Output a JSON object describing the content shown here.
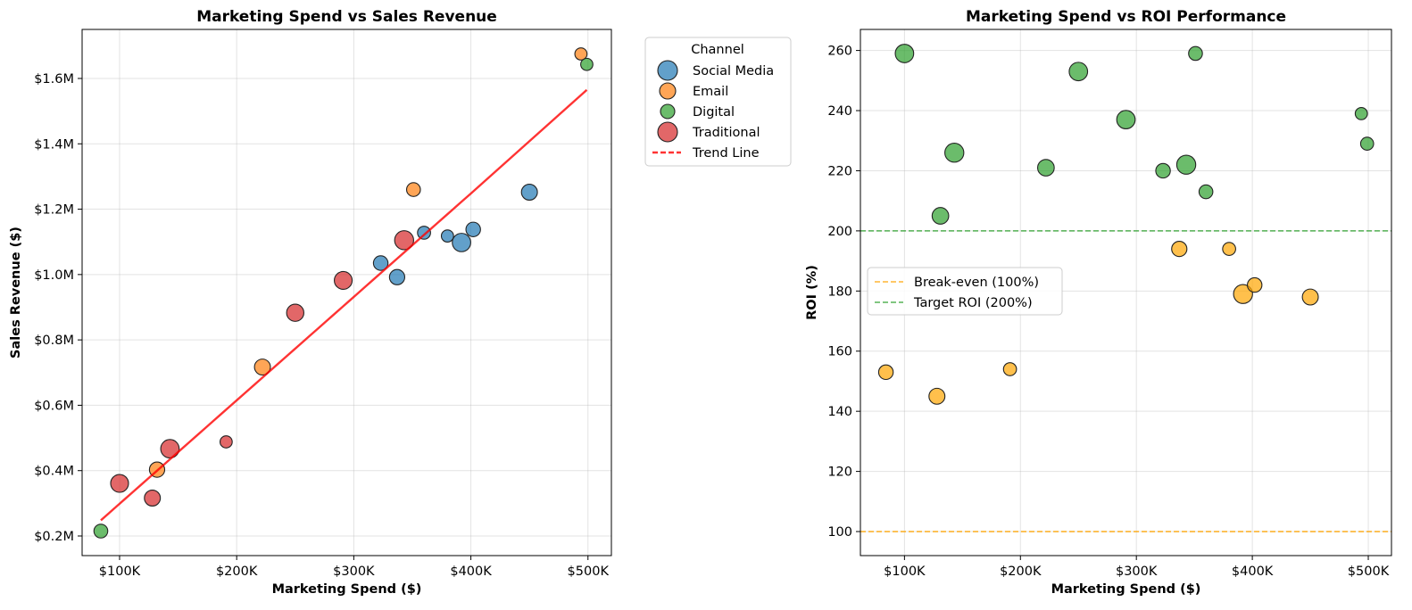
{
  "chart_data": [
    {
      "type": "scatter",
      "title": "Marketing Spend vs Sales Revenue",
      "xlabel": "Marketing Spend ($)",
      "ylabel": "Sales Revenue ($)",
      "xlim": [
        68000,
        520000
      ],
      "ylim": [
        140000,
        1750000
      ],
      "xticks": [
        100000,
        200000,
        300000,
        400000,
        500000
      ],
      "xtick_labels": [
        "$100K",
        "$200K",
        "$300K",
        "$400K",
        "$500K"
      ],
      "yticks": [
        200000,
        400000,
        600000,
        800000,
        1000000,
        1200000,
        1400000,
        1600000
      ],
      "ytick_labels": [
        "$0.2M",
        "$0.4M",
        "$0.6M",
        "$0.8M",
        "$1.0M",
        "$1.2M",
        "$1.4M",
        "$1.6M"
      ],
      "grid": true,
      "legend": {
        "title": "Channel",
        "placement": "outside-upper-right",
        "entries": [
          "Social Media",
          "Email",
          "Digital",
          "Traditional",
          "Trend Line"
        ]
      },
      "series": [
        {
          "name": "Social Media",
          "color": "#1f77b4",
          "points": [
            {
              "x": 323000,
              "y": 1035000,
              "size": 1.0
            },
            {
              "x": 337000,
              "y": 992000,
              "size": 1.1
            },
            {
              "x": 360000,
              "y": 1128000,
              "size": 0.8
            },
            {
              "x": 380000,
              "y": 1118000,
              "size": 0.7
            },
            {
              "x": 392000,
              "y": 1098000,
              "size": 1.6
            },
            {
              "x": 402000,
              "y": 1138000,
              "size": 1.0
            },
            {
              "x": 450000,
              "y": 1252000,
              "size": 1.2
            }
          ]
        },
        {
          "name": "Email",
          "color": "#ff7f0e",
          "points": [
            {
              "x": 132000,
              "y": 403000,
              "size": 1.1
            },
            {
              "x": 222000,
              "y": 717000,
              "size": 1.2
            },
            {
              "x": 351000,
              "y": 1260000,
              "size": 0.9
            },
            {
              "x": 494000,
              "y": 1675000,
              "size": 0.7
            }
          ]
        },
        {
          "name": "Digital",
          "color": "#2ca02c",
          "points": [
            {
              "x": 84000,
              "y": 215000,
              "size": 0.9
            },
            {
              "x": 499000,
              "y": 1643000,
              "size": 0.7
            }
          ]
        },
        {
          "name": "Traditional",
          "color": "#d62728",
          "points": [
            {
              "x": 100000,
              "y": 361000,
              "size": 1.5
            },
            {
              "x": 128000,
              "y": 316000,
              "size": 1.2
            },
            {
              "x": 143000,
              "y": 467000,
              "size": 1.6
            },
            {
              "x": 191000,
              "y": 488000,
              "size": 0.7
            },
            {
              "x": 250000,
              "y": 883000,
              "size": 1.4
            },
            {
              "x": 291000,
              "y": 982000,
              "size": 1.5
            },
            {
              "x": 343000,
              "y": 1105000,
              "size": 1.7
            }
          ]
        }
      ],
      "trend_line": {
        "name": "Trend Line",
        "color": "#ff0000",
        "x": [
          84000,
          400000,
          499000
        ],
        "y": [
          248000,
          1248000,
          1565000
        ]
      }
    },
    {
      "type": "scatter",
      "title": "Marketing Spend vs ROI Performance",
      "xlabel": "Marketing Spend ($)",
      "ylabel": "ROI (%)",
      "xlim": [
        62000,
        520000
      ],
      "ylim": [
        92,
        267
      ],
      "xticks": [
        100000,
        200000,
        300000,
        400000,
        500000
      ],
      "xtick_labels": [
        "$100K",
        "$200K",
        "$300K",
        "$400K",
        "$500K"
      ],
      "yticks": [
        100,
        120,
        140,
        160,
        180,
        200,
        220,
        240,
        260
      ],
      "ytick_labels": [
        "100",
        "120",
        "140",
        "160",
        "180",
        "200",
        "220",
        "240",
        "260"
      ],
      "grid": true,
      "legend": {
        "placement": "center-left",
        "entries": [
          "Break-even (100%)",
          "Target ROI (200%)"
        ]
      },
      "reference_lines": [
        {
          "label": "Break-even (100%)",
          "y": 100,
          "color": "#ffa500"
        },
        {
          "label": "Target ROI (200%)",
          "y": 200,
          "color": "#2ca02c"
        }
      ],
      "series": [
        {
          "name": "",
          "color": "#2ca02c",
          "points": [
            {
              "x": 100000,
              "y": 259,
              "size": 1.6
            },
            {
              "x": 131000,
              "y": 205,
              "size": 1.3
            },
            {
              "x": 143000,
              "y": 226,
              "size": 1.7
            },
            {
              "x": 222000,
              "y": 221,
              "size": 1.3
            },
            {
              "x": 250000,
              "y": 253,
              "size": 1.6
            },
            {
              "x": 291000,
              "y": 237,
              "size": 1.6
            },
            {
              "x": 323000,
              "y": 220,
              "size": 1.0
            },
            {
              "x": 343000,
              "y": 222,
              "size": 1.7
            },
            {
              "x": 351000,
              "y": 259,
              "size": 0.9
            },
            {
              "x": 360000,
              "y": 213,
              "size": 0.9
            },
            {
              "x": 494000,
              "y": 239,
              "size": 0.7
            },
            {
              "x": 499000,
              "y": 229,
              "size": 0.8
            }
          ]
        },
        {
          "name": "",
          "color": "#ffa500",
          "points": [
            {
              "x": 84000,
              "y": 153,
              "size": 1.0
            },
            {
              "x": 128000,
              "y": 145,
              "size": 1.2
            },
            {
              "x": 191000,
              "y": 154,
              "size": 0.8
            },
            {
              "x": 337000,
              "y": 194,
              "size": 1.1
            },
            {
              "x": 380000,
              "y": 194,
              "size": 0.8
            },
            {
              "x": 392000,
              "y": 179,
              "size": 1.7
            },
            {
              "x": 402000,
              "y": 182,
              "size": 1.0
            },
            {
              "x": 450000,
              "y": 178,
              "size": 1.2
            }
          ]
        }
      ]
    }
  ]
}
